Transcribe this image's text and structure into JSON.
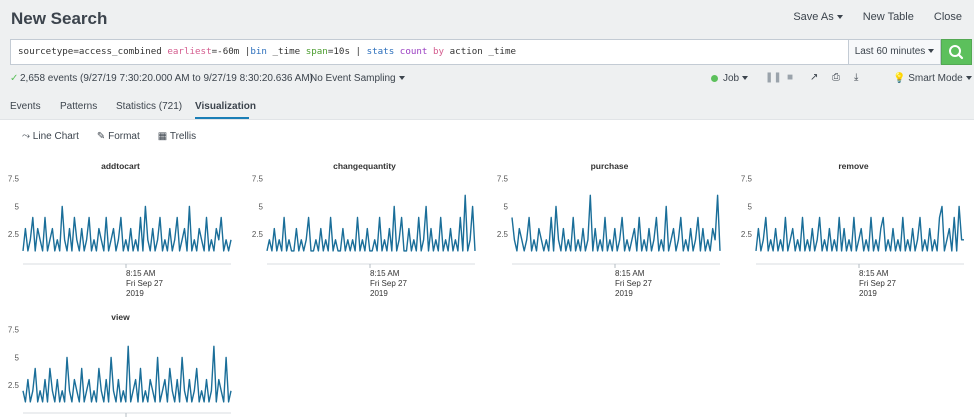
{
  "header": {
    "title": "New Search",
    "save_as": "Save As",
    "new_table": "New Table",
    "close": "Close"
  },
  "search": {
    "query_parts": [
      "sourcetype=access_combined ",
      "earliest",
      "=-60m |",
      "bin",
      " _time ",
      "span",
      "=10s | ",
      "stats",
      " ",
      "count",
      " ",
      "by",
      " action _time"
    ],
    "time_range": "Last 60 minutes"
  },
  "status": {
    "events_text": "2,658 events (9/27/19 7:30:20.000 AM to 9/27/19 8:30:20.636 AM)",
    "sampling": "No Event Sampling",
    "job": "Job",
    "mode": "Smart Mode"
  },
  "tabs": [
    "Events",
    "Patterns",
    "Statistics (721)",
    "Visualization"
  ],
  "viz_toolbar": {
    "line_chart": "Line Chart",
    "format": "Format",
    "trellis": "Trellis"
  },
  "colors": {
    "accent": "#1a7eb6",
    "line": "#1a6e99",
    "search_green": "#5cc05c"
  },
  "chart_data": [
    {
      "type": "line",
      "title": "addtocart",
      "yticks": [
        "7.5",
        "5",
        "2.5"
      ],
      "ylim": [
        0,
        8
      ],
      "xlabel_lines": [
        "8:15 AM",
        "Fri Sep 27",
        "2019"
      ],
      "values": [
        1,
        3,
        1,
        2,
        4,
        1,
        3,
        2,
        1,
        4,
        1,
        2,
        3,
        1,
        2,
        1,
        5,
        2,
        1,
        3,
        1,
        4,
        2,
        1,
        3,
        1,
        2,
        4,
        1,
        2,
        1,
        3,
        2,
        1,
        4,
        1,
        2,
        3,
        1,
        2,
        4,
        1,
        2,
        1,
        3,
        1,
        2,
        1,
        4,
        1,
        5,
        2,
        1,
        3,
        1,
        2,
        4,
        1,
        2,
        1,
        3,
        1,
        2,
        4,
        1,
        2,
        3,
        1,
        5,
        1,
        2,
        1,
        3,
        2,
        1,
        4,
        1,
        2,
        1,
        3,
        2,
        4,
        1,
        2,
        1,
        2
      ]
    },
    {
      "type": "line",
      "title": "changequantity",
      "yticks": [
        "7.5",
        "5",
        "2.5"
      ],
      "ylim": [
        0,
        8
      ],
      "xlabel_lines": [
        "8:15 AM",
        "Fri Sep 27",
        "2019"
      ],
      "values": [
        1,
        2,
        1,
        3,
        1,
        2,
        1,
        4,
        1,
        2,
        1,
        1,
        3,
        1,
        2,
        1,
        2,
        4,
        1,
        1,
        2,
        1,
        3,
        1,
        2,
        1,
        4,
        1,
        2,
        1,
        1,
        3,
        1,
        2,
        1,
        2,
        1,
        4,
        1,
        2,
        1,
        3,
        1,
        1,
        2,
        1,
        4,
        1,
        2,
        1,
        3,
        1,
        5,
        1,
        2,
        4,
        1,
        1,
        3,
        1,
        2,
        1,
        4,
        1,
        2,
        5,
        1,
        3,
        1,
        2,
        1,
        4,
        1,
        2,
        1,
        3,
        1,
        2,
        1,
        4,
        1,
        6,
        1,
        2,
        5,
        1
      ]
    },
    {
      "type": "line",
      "title": "purchase",
      "yticks": [
        "7.5",
        "5",
        "2.5"
      ],
      "ylim": [
        0,
        8
      ],
      "xlabel_lines": [
        "8:15 AM",
        "Fri Sep 27",
        "2019"
      ],
      "values": [
        4,
        2,
        1,
        3,
        2,
        1,
        2,
        4,
        1,
        2,
        1,
        3,
        2,
        1,
        2,
        1,
        4,
        1,
        5,
        2,
        1,
        3,
        1,
        2,
        1,
        4,
        1,
        2,
        1,
        3,
        1,
        2,
        6,
        1,
        3,
        1,
        2,
        1,
        4,
        1,
        2,
        1,
        3,
        1,
        2,
        4,
        1,
        2,
        1,
        2,
        3,
        1,
        4,
        1,
        2,
        1,
        3,
        1,
        2,
        4,
        1,
        2,
        1,
        5,
        1,
        2,
        3,
        1,
        2,
        4,
        1,
        2,
        1,
        3,
        1,
        2,
        4,
        1,
        3,
        1,
        2,
        1,
        3,
        2,
        6,
        1
      ]
    },
    {
      "type": "line",
      "title": "remove",
      "yticks": [
        "7.5",
        "5",
        "2.5"
      ],
      "ylim": [
        0,
        8
      ],
      "xlabel_lines": [
        "8:15 AM",
        "Fri Sep 27",
        "2019"
      ],
      "values": [
        1,
        3,
        1,
        2,
        4,
        1,
        2,
        1,
        3,
        1,
        2,
        1,
        4,
        1,
        2,
        3,
        1,
        2,
        1,
        4,
        1,
        2,
        1,
        3,
        1,
        2,
        4,
        1,
        2,
        1,
        3,
        1,
        2,
        1,
        4,
        1,
        3,
        1,
        2,
        1,
        4,
        1,
        2,
        3,
        1,
        2,
        1,
        4,
        1,
        2,
        1,
        3,
        4,
        1,
        2,
        1,
        3,
        1,
        2,
        1,
        4,
        1,
        2,
        1,
        3,
        1,
        2,
        4,
        1,
        2,
        1,
        3,
        1,
        2,
        1,
        4,
        5,
        1,
        2,
        3,
        1,
        4,
        1,
        5,
        2,
        2
      ]
    },
    {
      "type": "line",
      "title": "view",
      "yticks": [
        "7.5",
        "5",
        "2.5"
      ],
      "ylim": [
        0,
        8
      ],
      "xlabel_lines": [],
      "values": [
        2,
        1,
        3,
        1,
        2,
        4,
        1,
        2,
        1,
        3,
        1,
        4,
        2,
        1,
        3,
        1,
        2,
        1,
        5,
        2,
        1,
        3,
        2,
        1,
        4,
        1,
        2,
        3,
        1,
        2,
        1,
        4,
        2,
        1,
        3,
        1,
        5,
        2,
        1,
        3,
        1,
        2,
        1,
        6,
        1,
        2,
        3,
        1,
        4,
        1,
        2,
        1,
        3,
        2,
        1,
        5,
        1,
        2,
        3,
        1,
        4,
        2,
        1,
        3,
        1,
        5,
        2,
        1,
        3,
        1,
        2,
        4,
        1,
        2,
        1,
        3,
        1,
        2,
        6,
        1,
        3,
        2,
        1,
        5,
        1,
        2
      ]
    }
  ]
}
